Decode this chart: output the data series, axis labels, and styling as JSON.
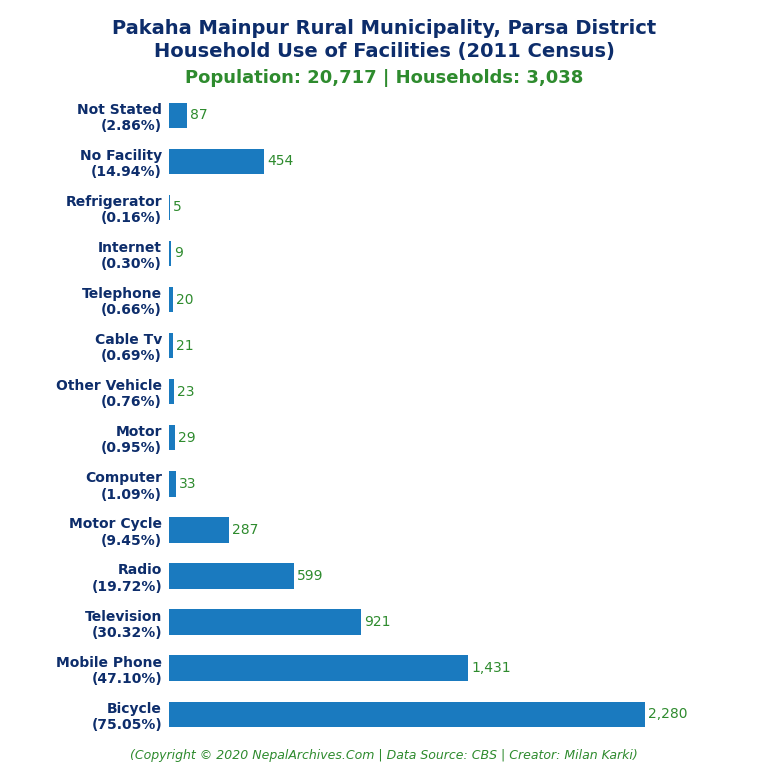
{
  "title_line1": "Pakaha Mainpur Rural Municipality, Parsa District",
  "title_line2": "Household Use of Facilities (2011 Census)",
  "subtitle": "Population: 20,717 | Households: 3,038",
  "copyright": "(Copyright © 2020 NepalArchives.Com | Data Source: CBS | Creator: Milan Karki)",
  "categories": [
    "Not Stated\n(2.86%)",
    "No Facility\n(14.94%)",
    "Refrigerator\n(0.16%)",
    "Internet\n(0.30%)",
    "Telephone\n(0.66%)",
    "Cable Tv\n(0.69%)",
    "Other Vehicle\n(0.76%)",
    "Motor\n(0.95%)",
    "Computer\n(1.09%)",
    "Motor Cycle\n(9.45%)",
    "Radio\n(19.72%)",
    "Television\n(30.32%)",
    "Mobile Phone\n(47.10%)",
    "Bicycle\n(75.05%)"
  ],
  "values": [
    87,
    454,
    5,
    9,
    20,
    21,
    23,
    29,
    33,
    287,
    599,
    921,
    1431,
    2280
  ],
  "value_labels": [
    "87",
    "454",
    "5",
    "9",
    "20",
    "21",
    "23",
    "29",
    "33",
    "287",
    "599",
    "921",
    "1,431",
    "2,280"
  ],
  "bar_color": "#1a7abf",
  "title_color": "#0d2d6b",
  "subtitle_color": "#2e8b2e",
  "value_label_color": "#2e8b2e",
  "copyright_color": "#2e8b2e",
  "background_color": "#ffffff",
  "title_fontsize": 14,
  "subtitle_fontsize": 13,
  "label_fontsize": 10,
  "value_fontsize": 10,
  "copyright_fontsize": 9,
  "xlim": [
    0,
    2500
  ]
}
